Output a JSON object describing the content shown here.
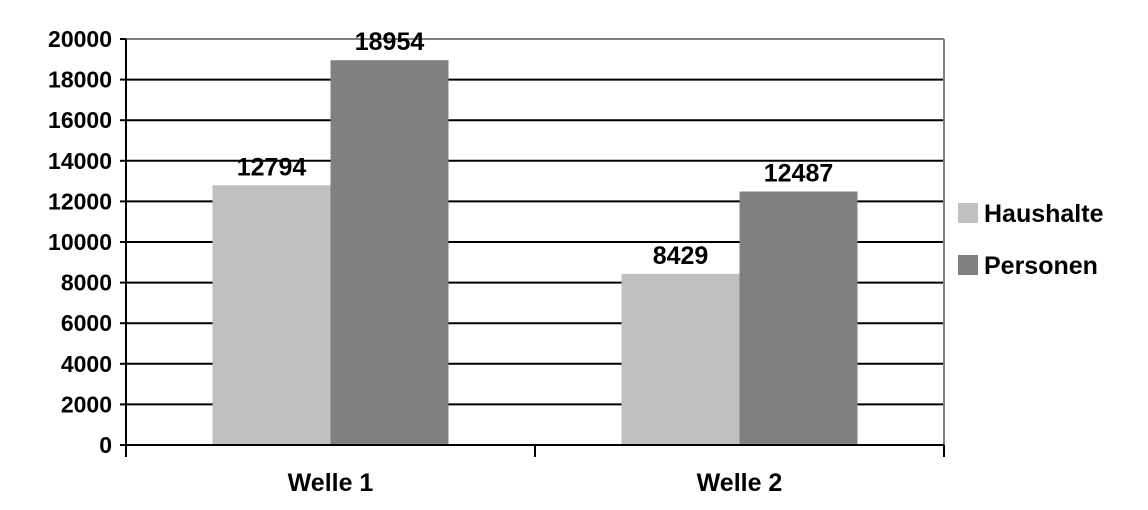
{
  "chart_data": {
    "type": "bar",
    "categories": [
      "Welle 1",
      "Welle 2"
    ],
    "series": [
      {
        "name": "Haushalte",
        "values": [
          12794,
          8429
        ],
        "color": "#c0c0c0"
      },
      {
        "name": "Personen",
        "values": [
          18954,
          12487
        ],
        "color": "#808080"
      }
    ],
    "ylim": [
      0,
      20000
    ],
    "yticks": [
      0,
      2000,
      4000,
      6000,
      8000,
      10000,
      12000,
      14000,
      16000,
      18000,
      20000
    ],
    "ytick_labels": [
      "0",
      "2000",
      "4000",
      "6000",
      "8000",
      "10000",
      "12000",
      "14000",
      "16000",
      "18000",
      "20000"
    ],
    "data_labels": [
      [
        "12794",
        "8429"
      ],
      [
        "18954",
        "12487"
      ]
    ],
    "grid": true,
    "legend_position": "right",
    "title": "",
    "xlabel": "",
    "ylabel": ""
  }
}
